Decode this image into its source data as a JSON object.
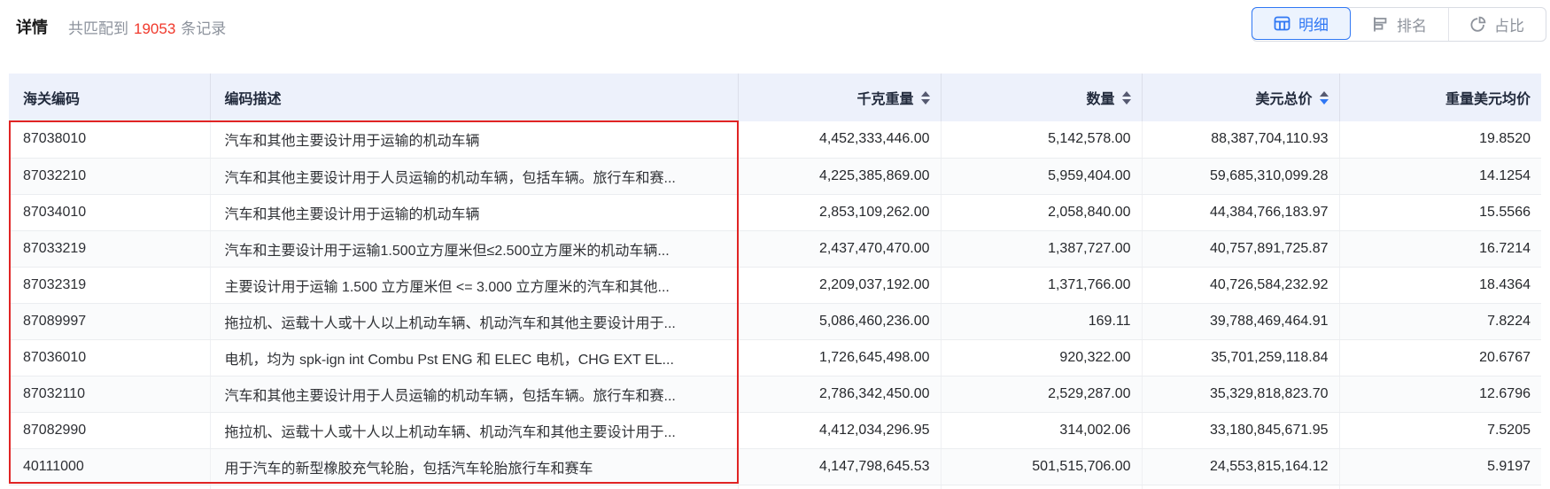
{
  "toolbar": {
    "title": "详情",
    "match_prefix": "共匹配到",
    "match_count": "19053",
    "match_suffix": "条记录",
    "tabs": [
      {
        "label": "明细",
        "icon": "table-grid-icon",
        "active": true
      },
      {
        "label": "排名",
        "icon": "ranking-bars-icon",
        "active": false
      },
      {
        "label": "占比",
        "icon": "pie-chart-icon",
        "active": false
      }
    ]
  },
  "table": {
    "columns": [
      {
        "label": "海关编码",
        "align": "left",
        "sortable": false,
        "sort": "none"
      },
      {
        "label": "编码描述",
        "align": "left",
        "sortable": false,
        "sort": "none"
      },
      {
        "label": "千克重量",
        "align": "right",
        "sortable": true,
        "sort": "none"
      },
      {
        "label": "数量",
        "align": "right",
        "sortable": true,
        "sort": "none"
      },
      {
        "label": "美元总价",
        "align": "right",
        "sortable": true,
        "sort": "desc"
      },
      {
        "label": "重量美元均价",
        "align": "right",
        "sortable": false,
        "sort": "none"
      }
    ],
    "rows": [
      {
        "hs_code": "87038010",
        "description": "汽车和其他主要设计用于运输的机动车辆",
        "kg_weight": "4,452,333,446.00",
        "quantity": "5,142,578.00",
        "usd_total": "88,387,704,110.93",
        "usd_per_kg": "19.8520"
      },
      {
        "hs_code": "87032210",
        "description": "汽车和其他主要设计用于人员运输的机动车辆，包括车辆。旅行车和赛...",
        "kg_weight": "4,225,385,869.00",
        "quantity": "5,959,404.00",
        "usd_total": "59,685,310,099.28",
        "usd_per_kg": "14.1254"
      },
      {
        "hs_code": "87034010",
        "description": "汽车和其他主要设计用于运输的机动车辆",
        "kg_weight": "2,853,109,262.00",
        "quantity": "2,058,840.00",
        "usd_total": "44,384,766,183.97",
        "usd_per_kg": "15.5566"
      },
      {
        "hs_code": "87033219",
        "description": "汽车和主要设计用于运输1.500立方厘米但≤2.500立方厘米的机动车辆...",
        "kg_weight": "2,437,470,470.00",
        "quantity": "1,387,727.00",
        "usd_total": "40,757,891,725.87",
        "usd_per_kg": "16.7214"
      },
      {
        "hs_code": "87032319",
        "description": "主要设计用于运输 1.500 立方厘米但 <= 3.000 立方厘米的汽车和其他...",
        "kg_weight": "2,209,037,192.00",
        "quantity": "1,371,766.00",
        "usd_total": "40,726,584,232.92",
        "usd_per_kg": "18.4364"
      },
      {
        "hs_code": "87089997",
        "description": "拖拉机、运载十人或十人以上机动车辆、机动汽车和其他主要设计用于...",
        "kg_weight": "5,086,460,236.00",
        "quantity": "169.11",
        "usd_total": "39,788,469,464.91",
        "usd_per_kg": "7.8224"
      },
      {
        "hs_code": "87036010",
        "description": "电机，均为 spk-ign int Combu Pst ENG 和 ELEC 电机，CHG EXT EL...",
        "kg_weight": "1,726,645,498.00",
        "quantity": "920,322.00",
        "usd_total": "35,701,259,118.84",
        "usd_per_kg": "20.6767"
      },
      {
        "hs_code": "87032110",
        "description": "汽车和其他主要设计用于人员运输的机动车辆，包括车辆。旅行车和赛...",
        "kg_weight": "2,786,342,450.00",
        "quantity": "2,529,287.00",
        "usd_total": "35,329,818,823.70",
        "usd_per_kg": "12.6796"
      },
      {
        "hs_code": "87082990",
        "description": "拖拉机、运载十人或十人以上机动车辆、机动汽车和其他主要设计用于...",
        "kg_weight": "4,412,034,296.95",
        "quantity": "314,002.06",
        "usd_total": "33,180,845,671.95",
        "usd_per_kg": "7.5205"
      },
      {
        "hs_code": "40111000",
        "description": "用于汽车的新型橡胶充气轮胎，包括汽车轮胎旅行车和赛车",
        "kg_weight": "4,147,798,645.53",
        "quantity": "501,515,706.00",
        "usd_total": "24,553,815,164.12",
        "usd_per_kg": "5.9197"
      }
    ]
  },
  "colors": {
    "accent_blue": "#2f77f4",
    "accent_blue_bg": "#ecf3fe",
    "count_red": "#f0382b",
    "highlight_border_red": "#e02424",
    "header_bg": "#edf1fb"
  }
}
